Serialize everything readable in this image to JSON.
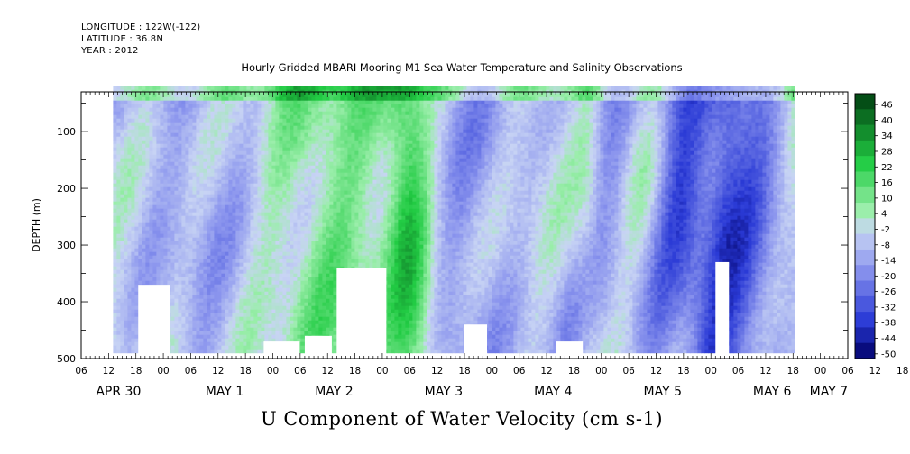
{
  "header": {
    "longitude": "LONGITUDE : 122W(-122)",
    "latitude": "LATITUDE : 36.8N",
    "year": "YEAR : 2012"
  },
  "chart_data": {
    "type": "heatmap",
    "title": "Hourly Gridded MBARI Mooring M1 Sea Water Temperature and Salinity Observations",
    "subtitle": "U Component of Water Velocity (cm s-1)",
    "ylabel": "DEPTH (m)",
    "xlabel": "",
    "x_start": "APR 30 06",
    "x_end": "MAY 7 06",
    "data_x_range_hours": [
      13,
      162
    ],
    "ylim": [
      500,
      30
    ],
    "y_reversed": true,
    "yticks": [
      100,
      200,
      300,
      400,
      500
    ],
    "x_hour_ticks": [
      "06",
      "12",
      "18",
      "00",
      "06",
      "12",
      "18",
      "00",
      "06",
      "12",
      "18",
      "00",
      "06",
      "12",
      "18",
      "00",
      "06",
      "12",
      "18",
      "00",
      "06",
      "12",
      "18",
      "00",
      "06",
      "12",
      "18",
      "00",
      "06",
      "12",
      "18",
      "00",
      "06"
    ],
    "x_day_labels": [
      {
        "label": "APR 30",
        "hour": 12
      },
      {
        "label": "MAY  1",
        "hour": 36
      },
      {
        "label": "MAY  2",
        "hour": 60
      },
      {
        "label": "MAY  3",
        "hour": 84
      },
      {
        "label": "MAY  4",
        "hour": 108
      },
      {
        "label": "MAY  5",
        "hour": 132
      },
      {
        "label": "MAY  6",
        "hour": 156
      },
      {
        "label": "MAY  7",
        "hour": 168
      }
    ],
    "colorbar": {
      "levels": [
        46,
        40,
        34,
        28,
        22,
        16,
        10,
        4,
        -2,
        -8,
        -14,
        -20,
        -26,
        -32,
        -38,
        -44,
        -50
      ],
      "range": [
        -50,
        50
      ],
      "colors": {
        "very_negative": "#000066",
        "negative": "#2a3ad6",
        "mild_negative": "#8c96ee",
        "near_zero": "#c8d4f4",
        "mild_positive": "#9aeeaa",
        "positive": "#22cc44",
        "very_positive": "#003e10"
      }
    },
    "grid": false
  }
}
